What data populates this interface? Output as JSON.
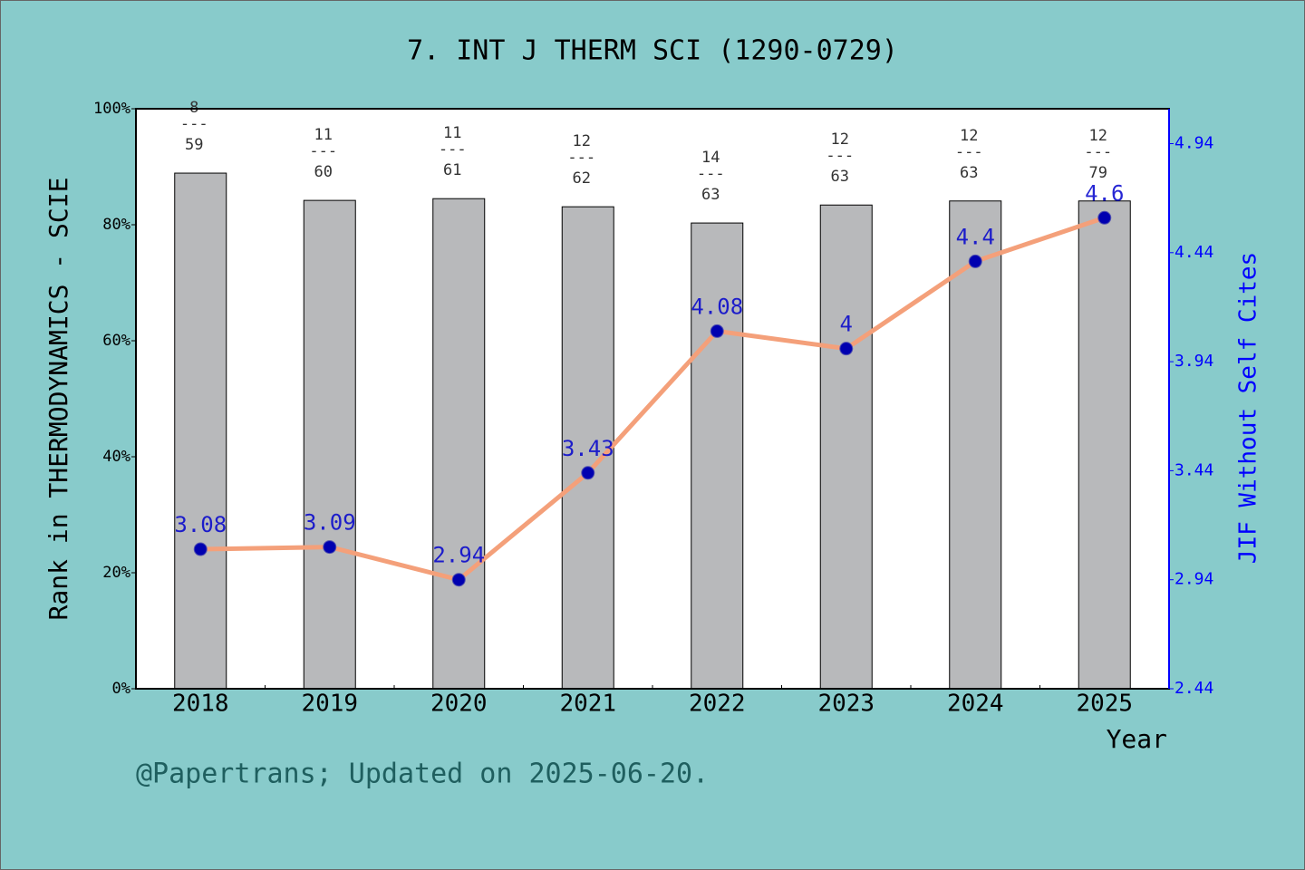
{
  "chart_data": {
    "type": "bar-line",
    "title": "7. INT J THERM SCI (1290-0729)",
    "x_label": "Year",
    "y_label": "Rank in THERMODYNAMICS - SCIE",
    "y2_label": "JIF Without Self Cites",
    "footnote": "@Papertrans; Updated on 2025-06-20.",
    "categories": [
      "2018",
      "2019",
      "2020",
      "2021",
      "2022",
      "2023",
      "2024",
      "2025"
    ],
    "ylim": [
      0,
      100
    ],
    "yticks": [
      {
        "value": 0,
        "label": "0%"
      },
      {
        "value": 20,
        "label": "20%"
      },
      {
        "value": 40,
        "label": "40%"
      },
      {
        "value": 60,
        "label": "60%"
      },
      {
        "value": 80,
        "label": "80%"
      },
      {
        "value": 100,
        "label": "100%"
      }
    ],
    "y2lim": [
      2.44,
      5.1
    ],
    "y2ticks": [
      2.44,
      2.94,
      3.44,
      3.94,
      4.44,
      4.94
    ],
    "rank_separator": "---",
    "series": [
      {
        "type": "bar",
        "color": "#b8b9bb",
        "values": [
          88.9,
          84.2,
          84.5,
          83.1,
          80.3,
          83.4,
          84.1,
          84.1
        ],
        "rank_labels": [
          [
            "8",
            "59"
          ],
          [
            "11",
            "60"
          ],
          [
            "11",
            "61"
          ],
          [
            "12",
            "62"
          ],
          [
            "14",
            "63"
          ],
          [
            "12",
            "63"
          ],
          [
            "12",
            "63"
          ],
          [
            "12",
            "79"
          ]
        ]
      },
      {
        "type": "line",
        "axis": "y2",
        "color": "#f4a07a",
        "marker_color": "#0000b0",
        "label_color": "#0000cc",
        "values": [
          3.08,
          3.09,
          2.94,
          3.43,
          4.08,
          4,
          4.4,
          4.6
        ]
      }
    ]
  }
}
